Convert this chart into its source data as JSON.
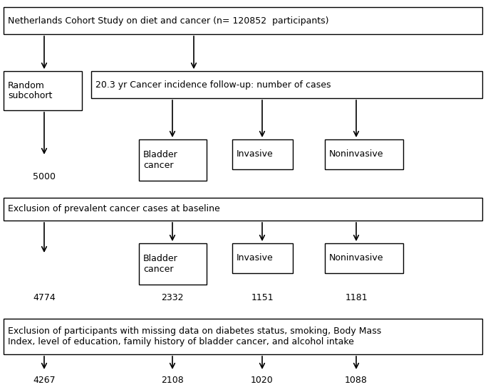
{
  "title": "Netherlands Cohort Study on diet and cancer (n= 120852  participants)",
  "box_top_left_text": "Random\nsubcohort",
  "box_top_right_text": "20.3 yr Cancer incidence follow-up: number of cases",
  "box_bladder1": "Bladder\ncancer",
  "box_invasive1": "Invasive",
  "box_noninvasive1": "Noninvasive",
  "val_5000": "5000",
  "box_excl1": "Exclusion of prevalent cancer cases at baseline",
  "box_bladder2": "Bladder\ncancer",
  "box_invasive2": "Invasive",
  "box_noninvasive2": "Noninvasive",
  "val_4774": "4774",
  "val_2332": "2332",
  "val_1151": "1151",
  "val_1181": "1181",
  "box_excl2": "Exclusion of participants with missing data on diabetes status, smoking, Body Mass\nIndex, level of education, family history of bladder cancer, and alcohol intake",
  "val_4267": "4267",
  "val_2108": "2108",
  "val_1020": "1020",
  "val_1088": "1088",
  "bg_color": "#ffffff",
  "box_edge_color": "#000000",
  "text_color": "#000000",
  "arrow_color": "#000000",
  "fontsize": 9.0
}
